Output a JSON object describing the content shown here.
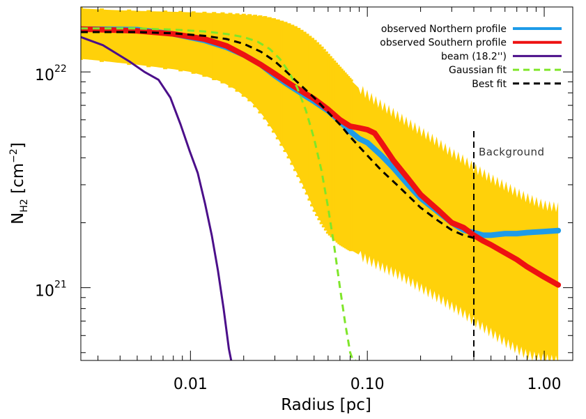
{
  "chart_data": {
    "type": "line",
    "title": "",
    "xlabel": "Radius [pc]",
    "ylabel_main": "N",
    "ylabel_sub": "H2",
    "ylabel_unit_open": " [cm",
    "ylabel_unit_exp": "−2",
    "ylabel_unit_close": "]",
    "xscale": "log",
    "yscale": "log",
    "xlim": [
      0.0024,
      1.45
    ],
    "ylim": [
      4.6e+20,
      2e+22
    ],
    "x_ticks": [
      {
        "value": 0.01,
        "label": "0.01"
      },
      {
        "value": 0.1,
        "label": "0.10"
      },
      {
        "value": 1.0,
        "label": "1.00"
      }
    ],
    "y_ticks": [
      {
        "value": 1e+21,
        "base": "10",
        "exp": "21"
      },
      {
        "value": 1e+22,
        "base": "10",
        "exp": "22"
      }
    ],
    "legend_position": "top-right",
    "series": [
      {
        "name": "observed Northern profile",
        "color": "#1e9be8",
        "style": "solid-thick",
        "x": [
          0.0024,
          0.005,
          0.008,
          0.012,
          0.016,
          0.02,
          0.025,
          0.03,
          0.035,
          0.04,
          0.045,
          0.05,
          0.06,
          0.07,
          0.08,
          0.09,
          0.1,
          0.12,
          0.14,
          0.17,
          0.2,
          0.25,
          0.3,
          0.35,
          0.4,
          0.45,
          0.5,
          0.6,
          0.7,
          0.8,
          1.0,
          1.2
        ],
        "y": [
          1.58e+22,
          1.57e+22,
          1.5e+22,
          1.4e+22,
          1.3e+22,
          1.2e+22,
          1.08e+22,
          9.6e+21,
          8.8e+21,
          8.2e+21,
          7.7e+21,
          7.3e+21,
          6.6e+21,
          5.9e+21,
          5.3e+21,
          4.9e+21,
          4.7e+21,
          4.1e+21,
          3.6e+21,
          3e+21,
          2.6e+21,
          2.25e+21,
          2e+21,
          1.85e+21,
          1.8e+21,
          1.75e+21,
          1.75e+21,
          1.78e+21,
          1.78e+21,
          1.8e+21,
          1.82e+21,
          1.84e+21
        ]
      },
      {
        "name": "observed Southern profile",
        "color": "#ee1111",
        "style": "solid-thick",
        "x": [
          0.0024,
          0.005,
          0.008,
          0.012,
          0.016,
          0.02,
          0.025,
          0.03,
          0.035,
          0.04,
          0.045,
          0.05,
          0.06,
          0.07,
          0.08,
          0.09,
          0.1,
          0.11,
          0.12,
          0.14,
          0.17,
          0.2,
          0.25,
          0.3,
          0.35,
          0.4,
          0.45,
          0.5,
          0.6,
          0.7,
          0.8,
          1.0,
          1.2
        ],
        "y": [
          1.58e+22,
          1.55e+22,
          1.5e+22,
          1.42e+22,
          1.32e+22,
          1.2e+22,
          1.08e+22,
          9.8e+21,
          9e+21,
          8.4e+21,
          7.9e+21,
          7.5e+21,
          6.7e+21,
          6e+21,
          5.6e+21,
          5.5e+21,
          5.4e+21,
          5.2e+21,
          4.7e+21,
          3.9e+21,
          3.2e+21,
          2.7e+21,
          2.3e+21,
          2e+21,
          1.9e+21,
          1.75e+21,
          1.65e+21,
          1.58e+21,
          1.45e+21,
          1.35e+21,
          1.25e+21,
          1.12e+21,
          1.03e+21
        ]
      },
      {
        "name": "beam (18.2'')",
        "color": "#4b0f8a",
        "style": "solid-thin",
        "x": [
          0.0024,
          0.0032,
          0.0045,
          0.0055,
          0.0066,
          0.0077,
          0.0088,
          0.0099,
          0.011,
          0.0121,
          0.0132,
          0.0143,
          0.0154,
          0.0165,
          0.017
        ],
        "y": [
          1.45e+22,
          1.33e+22,
          1.12e+22,
          1e+22,
          9.2e+21,
          7.6e+21,
          5.7e+21,
          4.3e+21,
          3.4e+21,
          2.45e+21,
          1.75e+21,
          1.2e+21,
          8e+20,
          5.2e+20,
          4.6e+20
        ]
      },
      {
        "name": "Gaussian fit",
        "color": "#7fe62a",
        "style": "dashed",
        "x": [
          0.0024,
          0.005,
          0.008,
          0.012,
          0.016,
          0.02,
          0.024,
          0.028,
          0.032,
          0.036,
          0.04,
          0.045,
          0.05,
          0.055,
          0.06,
          0.065,
          0.07,
          0.075,
          0.08,
          0.083,
          0.086
        ],
        "y": [
          1.59e+22,
          1.59e+22,
          1.57e+22,
          1.54e+22,
          1.5e+22,
          1.45e+22,
          1.38e+22,
          1.28e+22,
          1.15e+22,
          1e+22,
          8.5e+21,
          6.6e+21,
          4.9e+21,
          3.5e+21,
          2.35e+21,
          1.55e+21,
          1e+21,
          6.8e+20,
          5e+20,
          4.6e+20,
          4.6e+20
        ]
      },
      {
        "name": "Best fit",
        "color": "#000000",
        "style": "dashed",
        "x": [
          0.0024,
          0.005,
          0.008,
          0.012,
          0.016,
          0.02,
          0.025,
          0.03,
          0.035,
          0.04,
          0.05,
          0.06,
          0.07,
          0.08,
          0.1,
          0.12,
          0.15,
          0.2,
          0.25,
          0.3,
          0.35,
          0.4
        ],
        "y": [
          1.53e+22,
          1.53e+22,
          1.51e+22,
          1.47e+22,
          1.42e+22,
          1.35e+22,
          1.24e+22,
          1.12e+22,
          1e+22,
          9e+21,
          7.6e+21,
          6.5e+21,
          5.7e+21,
          5e+21,
          4.1e+21,
          3.5e+21,
          2.95e+21,
          2.35e+21,
          2.05e+21,
          1.85e+21,
          1.75e+21,
          1.7e+21
        ]
      }
    ],
    "error_band": {
      "color": "#ffd10a",
      "x": [
        0.0024,
        0.003,
        0.004,
        0.005,
        0.006,
        0.008,
        0.01,
        0.012,
        0.015,
        0.018,
        0.022,
        0.026,
        0.03,
        0.035,
        0.04,
        0.045,
        0.05,
        0.055,
        0.06,
        0.07,
        0.08,
        0.09,
        0.1,
        0.12,
        0.15,
        0.2,
        0.25,
        0.3,
        0.35,
        0.4,
        0.5,
        0.6,
        0.7,
        0.8,
        1.0,
        1.2
      ],
      "upper": [
        1.97e+22,
        1.95e+22,
        1.93e+22,
        1.92e+22,
        1.91e+22,
        1.9e+22,
        1.89e+22,
        1.88e+22,
        1.87e+22,
        1.85e+22,
        1.83e+22,
        1.8e+22,
        1.75e+22,
        1.68e+22,
        1.6e+22,
        1.5e+22,
        1.4e+22,
        1.3e+22,
        1.2e+22,
        1.04e+22,
        9.2e+21,
        8.4e+21,
        7.8e+21,
        7e+21,
        6.2e+21,
        5.3e+21,
        4.7e+21,
        4.2e+21,
        3.9e+21,
        3.6e+21,
        3.2e+21,
        2.95e+21,
        2.75e+21,
        2.6e+21,
        2.4e+21,
        2.35e+21
      ],
      "lower": [
        1.15e+22,
        1.13e+22,
        1.1e+22,
        1.08e+22,
        1.06e+22,
        1.03e+22,
        1e+22,
        9.6e+21,
        9e+21,
        8.3e+21,
        7.3e+21,
        6.2e+21,
        5.2e+21,
        4.2e+21,
        3.4e+21,
        2.8e+21,
        2.3e+21,
        2e+21,
        1.8e+21,
        1.6e+21,
        1.5e+21,
        1.42e+21,
        1.35e+21,
        1.25e+21,
        1.15e+21,
        1e+21,
        9e+20,
        8.2e+20,
        7.6e+20,
        7e+20,
        6.2e+20,
        5.6e+20,
        5.2e+20,
        4.9e+20,
        4.7e+20,
        4.6e+20
      ]
    },
    "error_bar_ticks_x": [
      0.0024,
      0.00315,
      0.0045,
      0.0058,
      0.0072,
      0.0088,
      0.0104,
      0.012,
      0.0136,
      0.0152,
      0.0168,
      0.0184,
      0.02,
      0.0216,
      0.0232,
      0.0248,
      0.0264,
      0.028,
      0.0296,
      0.0312,
      0.0328,
      0.0344,
      0.036,
      0.0376,
      0.0392,
      0.0408,
      0.0424,
      0.044,
      0.0456,
      0.0472,
      0.0488,
      0.0504,
      0.052,
      0.0536,
      0.0552,
      0.0568,
      0.0584,
      0.06,
      0.0616,
      0.0632,
      0.0648,
      0.0664,
      0.068,
      0.0696,
      0.0712,
      0.0728,
      0.0744,
      0.076,
      0.0776,
      0.0792,
      0.0808
    ],
    "background_line": {
      "x": 0.4,
      "label": "Background"
    }
  }
}
